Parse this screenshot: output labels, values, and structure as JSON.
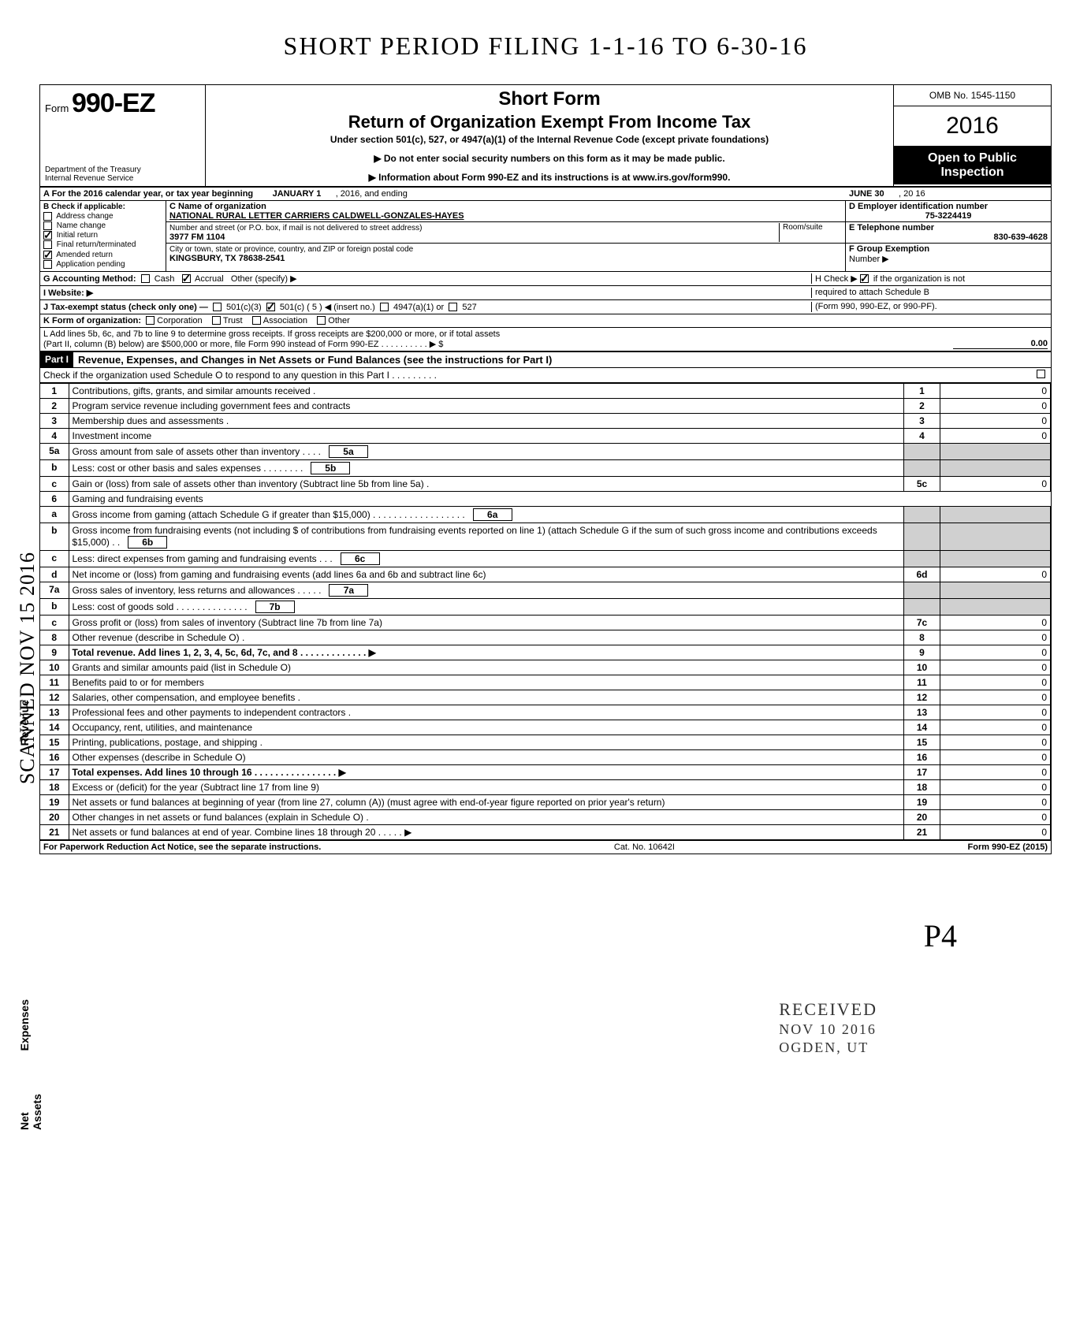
{
  "handwritten_title": "SHORT  PERIOD  FILING   1-1-16  TO  6-30-16",
  "form": {
    "prefix": "Form",
    "number": "990-EZ",
    "dept1": "Department of the Treasury",
    "dept2": "Internal Revenue Service",
    "short_form": "Short Form",
    "title": "Return of Organization Exempt From Income Tax",
    "subtitle": "Under section 501(c), 527, or 4947(a)(1) of the Internal Revenue Code (except private foundations)",
    "arrow1": "▶ Do not enter social security numbers on this form as it may be made public.",
    "arrow2": "▶ Information about Form 990-EZ and its instructions is at www.irs.gov/form990.",
    "omb": "OMB No. 1545-1150",
    "year": "2016",
    "open1": "Open to Public",
    "open2": "Inspection"
  },
  "lineA": {
    "prefix": "A  For the 2016 calendar year, or tax year beginning",
    "begin": "JANUARY 1",
    "mid": ", 2016, and ending",
    "end": "JUNE 30",
    "end2": ", 20   16"
  },
  "B": {
    "header": "B  Check if applicable:",
    "items": [
      "Address change",
      "Name change",
      "Initial return",
      "Final return/terminated",
      "Amended return",
      "Application pending"
    ],
    "checked": [
      false,
      false,
      true,
      false,
      true,
      false
    ]
  },
  "C": {
    "label": "C  Name of organization",
    "name": "NATIONAL RURAL LETTER CARRIERS   CALDWELL-GONZALES-HAYES",
    "addr_label": "Number and street (or P.O. box, if mail is not delivered to street address)",
    "room": "Room/suite",
    "addr": "3977 FM 1104",
    "city_label": "City or town, state or province, country, and ZIP or foreign postal code",
    "city": "KINGSBURY, TX 78638-2541"
  },
  "D": {
    "label": "D Employer identification number",
    "val": "75-3224419"
  },
  "E": {
    "label": "E  Telephone number",
    "val": "830-639-4628"
  },
  "F": {
    "label": "F  Group Exemption",
    "label2": "Number ▶",
    "val": ""
  },
  "G": {
    "label": "G  Accounting Method:",
    "cash": "Cash",
    "accrual": "Accrual",
    "other": "Other (specify) ▶"
  },
  "H": {
    "text1": "H  Check ▶",
    "text2": "if the organization is not",
    "text3": "required to attach Schedule B",
    "text4": "(Form 990, 990-EZ, or 990-PF)."
  },
  "I": {
    "label": "I   Website: ▶"
  },
  "J": {
    "text": "J  Tax-exempt status (check only one) —",
    "c3": "501(c)(3)",
    "c": "501(c) (   5   ) ◀ (insert no.)",
    "a": "4947(a)(1) or",
    "s527": "527"
  },
  "K": {
    "label": "K  Form of organization:",
    "opts": [
      "Corporation",
      "Trust",
      "Association",
      "Other"
    ]
  },
  "L": {
    "line1": "L  Add lines 5b, 6c, and 7b to line 9 to determine gross receipts. If gross receipts are $200,000 or more, or if total assets",
    "line2": "(Part II, column (B) below) are $500,000 or more, file Form 990 instead of Form 990-EZ .   .   .   .   .   .   .   .   .   .   ▶  $",
    "amt": "0.00"
  },
  "part1": {
    "tag": "Part I",
    "title": "Revenue, Expenses, and Changes in Net Assets or Fund Balances (see the instructions for Part I)",
    "check_line": "Check if the organization used Schedule O to respond to any question in this Part I  .   .   .   .   .   .   .   .   ."
  },
  "rows": [
    {
      "n": "1",
      "d": "Contributions, gifts, grants, and similar amounts received .",
      "num": "1",
      "amt": "0"
    },
    {
      "n": "2",
      "d": "Program service revenue including government fees and contracts",
      "num": "2",
      "amt": "0"
    },
    {
      "n": "3",
      "d": "Membership dues and assessments .",
      "num": "3",
      "amt": "0"
    },
    {
      "n": "4",
      "d": "Investment income",
      "num": "4",
      "amt": "0"
    },
    {
      "n": "5a",
      "d": "Gross amount from sale of assets other than inventory   .   .   .   .",
      "ibox": "5a"
    },
    {
      "n": "b",
      "d": "Less: cost or other basis and sales expenses .   .   .   .   .   .   .   .",
      "ibox": "5b"
    },
    {
      "n": "c",
      "d": "Gain or (loss) from sale of assets other than inventory (Subtract line 5b from line 5a) .",
      "num": "5c",
      "amt": "0"
    },
    {
      "n": "6",
      "d": "Gaming and fundraising events"
    },
    {
      "n": "a",
      "d": "Gross income from gaming (attach Schedule G if greater than $15,000) .   .   .   .   .   .   .   .   .   .   .   .   .   .   .   .   .   .",
      "ibox": "6a"
    },
    {
      "n": "b",
      "d": "Gross income from fundraising events (not including  $                       of contributions from fundraising events reported on line 1) (attach Schedule G if the sum of such gross income and contributions exceeds $15,000) .   .",
      "ibox": "6b"
    },
    {
      "n": "c",
      "d": "Less: direct expenses from gaming and fundraising events   .   .   .",
      "ibox": "6c"
    },
    {
      "n": "d",
      "d": "Net income or (loss) from gaming and fundraising events (add lines 6a and 6b and subtract line 6c)",
      "num": "6d",
      "amt": "0"
    },
    {
      "n": "7a",
      "d": "Gross sales of inventory, less returns and allowances  .   .   .   .   .",
      "ibox": "7a"
    },
    {
      "n": "b",
      "d": "Less: cost of goods sold    .   .   .   .   .   .   .   .   .   .   .   .   .   .",
      "ibox": "7b"
    },
    {
      "n": "c",
      "d": "Gross profit or (loss) from sales of inventory (Subtract line 7b from line 7a)",
      "num": "7c",
      "amt": "0"
    },
    {
      "n": "8",
      "d": "Other revenue (describe in Schedule O) .",
      "num": "8",
      "amt": "0"
    },
    {
      "n": "9",
      "d": "Total revenue. Add lines 1, 2, 3, 4, 5c, 6d, 7c, and 8   .   .   .   .   .   .   .   .   .   .   .   .   .   ▶",
      "num": "9",
      "amt": "0",
      "bold": true
    },
    {
      "n": "10",
      "d": "Grants and similar amounts paid (list in Schedule O)",
      "num": "10",
      "amt": "0"
    },
    {
      "n": "11",
      "d": "Benefits paid to or for members",
      "num": "11",
      "amt": "0"
    },
    {
      "n": "12",
      "d": "Salaries, other compensation, and employee benefits .",
      "num": "12",
      "amt": "0"
    },
    {
      "n": "13",
      "d": "Professional fees and other payments to independent contractors .",
      "num": "13",
      "amt": "0"
    },
    {
      "n": "14",
      "d": "Occupancy, rent, utilities, and maintenance",
      "num": "14",
      "amt": "0"
    },
    {
      "n": "15",
      "d": "Printing, publications, postage, and shipping .",
      "num": "15",
      "amt": "0"
    },
    {
      "n": "16",
      "d": "Other expenses (describe in Schedule O)",
      "num": "16",
      "amt": "0"
    },
    {
      "n": "17",
      "d": "Total expenses. Add lines 10 through 16  .   .   .   .   .   .   .   .   .   .   .   .   .   .   .   .   ▶",
      "num": "17",
      "amt": "0",
      "bold": true
    },
    {
      "n": "18",
      "d": "Excess or (deficit) for the year (Subtract line 17 from line 9)",
      "num": "18",
      "amt": "0"
    },
    {
      "n": "19",
      "d": "Net assets or fund balances at beginning of year (from line 27, column (A)) (must agree with end-of-year figure reported on prior year's return)",
      "num": "19",
      "amt": "0"
    },
    {
      "n": "20",
      "d": "Other changes in net assets or fund balances (explain in Schedule O) .",
      "num": "20",
      "amt": "0"
    },
    {
      "n": "21",
      "d": "Net assets or fund balances at end of year. Combine lines 18 through 20   .   .   .   .   .   ▶",
      "num": "21",
      "amt": "0"
    }
  ],
  "side": {
    "rev": "Revenue",
    "exp": "Expenses",
    "net": "Net Assets"
  },
  "scanned": "SCANNED NOV 15 2016",
  "stamp": {
    "l1": "RECEIVED",
    "l2": "NOV 10 2016",
    "l3": "OGDEN, UT"
  },
  "footer": {
    "left": "For Paperwork Reduction Act Notice, see the separate instructions.",
    "mid": "Cat. No. 10642I",
    "right": "Form 990-EZ (2015)"
  },
  "page_hand": "P4",
  "colors": {
    "text": "#000000",
    "bg": "#ffffff",
    "grey": "#d0d0d0",
    "black": "#000000"
  }
}
